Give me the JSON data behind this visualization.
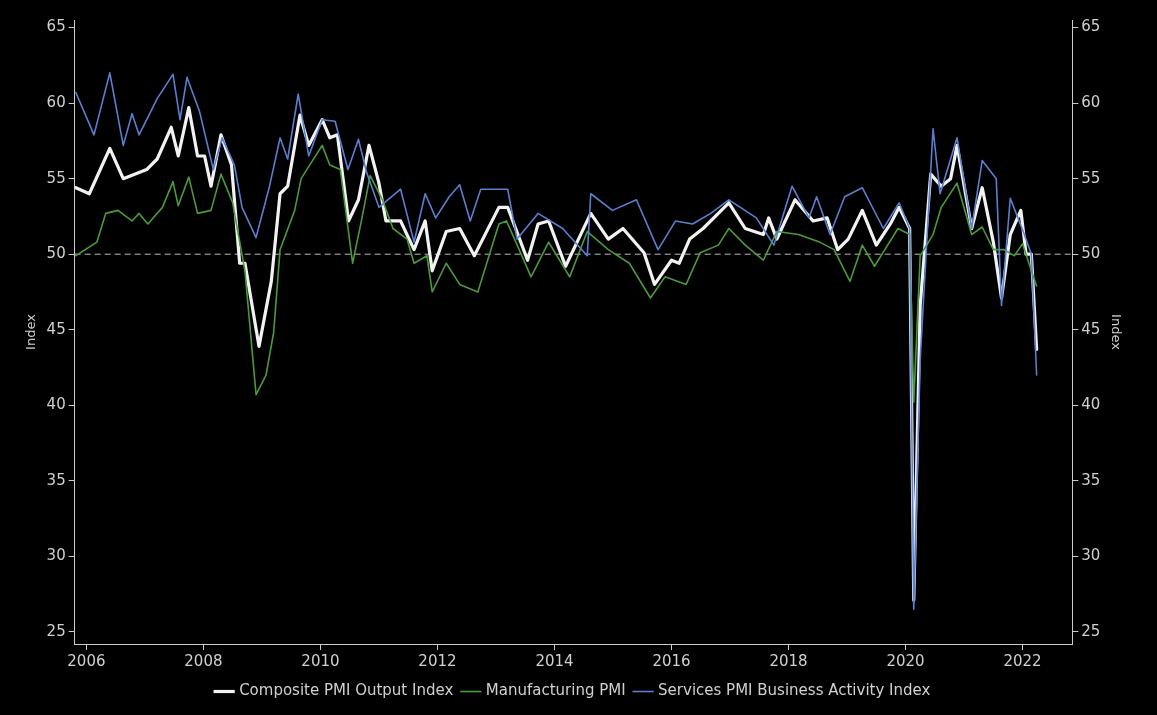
{
  "chart_data": {
    "type": "line",
    "xlabel": null,
    "ylabel": "Index",
    "y2label": "Index",
    "xlim": [
      2005.8,
      2022.85
    ],
    "xticks": [
      2006,
      2008,
      2010,
      2012,
      2014,
      2016,
      2018,
      2020,
      2022
    ],
    "ylim": [
      24.2,
      65.5
    ],
    "yticks": [
      25,
      30,
      35,
      40,
      45,
      50,
      55,
      60,
      65
    ],
    "y2lim": [
      24.2,
      65.5
    ],
    "y2ticks": [
      25,
      30,
      35,
      40,
      45,
      50,
      55,
      60,
      65
    ],
    "grid": false,
    "legend": "bottom",
    "marker": "none",
    "line_style": "solid",
    "ref_lines": [
      {
        "axis": "y",
        "value": 50,
        "label": null,
        "color": "#bbbbbb",
        "line_style": "dashed"
      }
    ],
    "series": [
      {
        "name": "Composite PMI Output Index",
        "color": "#f2f2f2",
        "x": [
          2005.82,
          2006.05,
          2006.4,
          2006.63,
          2007.03,
          2007.21,
          2007.45,
          2007.57,
          2007.75,
          2007.9,
          2008.02,
          2008.13,
          2008.3,
          2008.48,
          2008.62,
          2008.71,
          2008.95,
          2009.16,
          2009.31,
          2009.44,
          2009.65,
          2009.8,
          2010.03,
          2010.16,
          2010.29,
          2010.48,
          2010.65,
          2010.83,
          2011.0,
          2011.12,
          2011.37,
          2011.6,
          2011.79,
          2011.91,
          2012.15,
          2012.38,
          2012.63,
          2013.05,
          2013.2,
          2013.54,
          2013.72,
          2013.9,
          2014.19,
          2014.62,
          2014.92,
          2015.17,
          2015.53,
          2015.71,
          2016.0,
          2016.13,
          2016.31,
          2016.54,
          2016.8,
          2016.98,
          2017.26,
          2017.57,
          2017.66,
          2017.8,
          2018.11,
          2018.42,
          2018.66,
          2018.84,
          2019.02,
          2019.26,
          2019.5,
          2019.74,
          2019.89,
          2020.07,
          2020.14,
          2020.25,
          2020.43,
          2020.61,
          2020.77,
          2020.88,
          2021.13,
          2021.31,
          2021.5,
          2021.64,
          2021.79,
          2021.97,
          2022.06,
          2022.15,
          2022.24
        ],
        "values": [
          54.4,
          54.0,
          57.0,
          55.0,
          55.6,
          56.3,
          58.4,
          56.5,
          59.7,
          56.5,
          56.5,
          54.5,
          57.9,
          55.9,
          49.4,
          49.4,
          43.9,
          48.2,
          54.0,
          54.5,
          59.2,
          57.2,
          58.9,
          57.7,
          57.9,
          52.2,
          53.6,
          57.2,
          54.7,
          52.2,
          52.2,
          50.3,
          52.2,
          48.9,
          51.5,
          51.7,
          49.9,
          53.1,
          53.1,
          49.6,
          52.0,
          52.2,
          49.2,
          52.7,
          51.0,
          51.7,
          50.1,
          48.0,
          49.6,
          49.4,
          51.0,
          51.7,
          52.7,
          53.4,
          51.7,
          51.3,
          52.4,
          51.0,
          53.6,
          52.2,
          52.4,
          50.3,
          51.0,
          52.9,
          50.6,
          52.0,
          53.1,
          51.7,
          27.1,
          46.6,
          55.3,
          54.5,
          55.0,
          57.2,
          51.7,
          54.4,
          50.8,
          47.1,
          51.3,
          52.9,
          50.0,
          50.0,
          43.7
        ]
      },
      {
        "name": "Manufacturing PMI",
        "color": "#4a9a3c",
        "x": [
          2005.82,
          2006.18,
          2006.33,
          2006.54,
          2006.78,
          2006.9,
          2007.05,
          2007.3,
          2007.48,
          2007.57,
          2007.75,
          2007.9,
          2008.13,
          2008.3,
          2008.5,
          2008.71,
          2008.9,
          2009.07,
          2009.2,
          2009.31,
          2009.56,
          2009.67,
          2010.03,
          2010.16,
          2010.34,
          2010.55,
          2010.7,
          2010.85,
          2011.06,
          2011.24,
          2011.48,
          2011.6,
          2011.82,
          2011.91,
          2012.15,
          2012.38,
          2012.69,
          2013.05,
          2013.18,
          2013.6,
          2013.9,
          2014.26,
          2014.56,
          2014.92,
          2015.28,
          2015.64,
          2015.89,
          2016.25,
          2016.49,
          2016.8,
          2016.98,
          2017.26,
          2017.57,
          2017.8,
          2018.17,
          2018.53,
          2018.78,
          2019.05,
          2019.26,
          2019.47,
          2019.87,
          2020.07,
          2020.14,
          2020.25,
          2020.47,
          2020.61,
          2020.88,
          2021.13,
          2021.31,
          2021.5,
          2021.68,
          2021.86,
          2022.0,
          2022.15,
          2022.24
        ],
        "values": [
          49.9,
          50.8,
          52.7,
          52.9,
          52.2,
          52.7,
          52.0,
          53.1,
          54.8,
          53.2,
          55.1,
          52.7,
          52.9,
          55.3,
          53.4,
          48.9,
          40.7,
          42.0,
          44.8,
          50.3,
          52.9,
          55.0,
          57.2,
          55.9,
          55.6,
          49.4,
          52.2,
          55.2,
          53.6,
          51.7,
          51.0,
          49.4,
          49.9,
          47.5,
          49.4,
          48.0,
          47.5,
          52.0,
          52.2,
          48.5,
          50.8,
          48.5,
          51.5,
          50.3,
          49.4,
          47.1,
          48.5,
          48.0,
          50.1,
          50.6,
          51.7,
          50.6,
          49.6,
          51.5,
          51.3,
          50.8,
          50.3,
          48.2,
          50.6,
          49.2,
          51.7,
          51.3,
          40.2,
          49.9,
          51.3,
          53.1,
          54.7,
          51.3,
          51.8,
          50.3,
          50.3,
          49.9,
          50.7,
          48.9,
          47.9
        ]
      },
      {
        "name": "Services PMI Business Activity Index",
        "color": "#5b7fd0",
        "x": [
          2005.82,
          2006.13,
          2006.4,
          2006.63,
          2006.78,
          2006.9,
          2007.21,
          2007.48,
          2007.6,
          2007.72,
          2007.93,
          2008.17,
          2008.32,
          2008.53,
          2008.66,
          2008.9,
          2009.13,
          2009.31,
          2009.44,
          2009.62,
          2009.8,
          2010.03,
          2010.25,
          2010.47,
          2010.65,
          2010.79,
          2011.0,
          2011.37,
          2011.6,
          2011.79,
          2011.97,
          2012.2,
          2012.38,
          2012.56,
          2012.74,
          2013.2,
          2013.36,
          2013.72,
          2014.14,
          2014.56,
          2014.62,
          2014.99,
          2015.4,
          2015.77,
          2016.07,
          2016.36,
          2016.67,
          2016.98,
          2017.45,
          2017.75,
          2018.06,
          2018.35,
          2018.48,
          2018.71,
          2018.96,
          2019.26,
          2019.62,
          2019.89,
          2020.07,
          2020.14,
          2020.25,
          2020.47,
          2020.59,
          2020.88,
          2021.13,
          2021.31,
          2021.55,
          2021.64,
          2021.79,
          2022.03,
          2022.15,
          2022.24
        ],
        "values": [
          60.7,
          57.9,
          62.0,
          57.2,
          59.3,
          57.9,
          60.3,
          61.9,
          58.9,
          61.7,
          59.5,
          55.6,
          57.7,
          55.9,
          53.1,
          51.1,
          54.5,
          57.7,
          56.3,
          60.6,
          56.5,
          58.9,
          58.8,
          55.6,
          57.6,
          55.4,
          53.1,
          54.3,
          50.8,
          54.0,
          52.4,
          53.8,
          54.6,
          52.2,
          54.3,
          54.3,
          51.0,
          52.7,
          51.7,
          49.9,
          54.0,
          52.9,
          53.6,
          50.3,
          52.2,
          52.0,
          52.7,
          53.6,
          52.4,
          50.6,
          54.5,
          52.4,
          53.8,
          51.3,
          53.8,
          54.4,
          51.7,
          53.4,
          51.7,
          26.5,
          43.0,
          58.3,
          54.0,
          57.7,
          51.7,
          56.2,
          55.0,
          46.6,
          53.7,
          51.3,
          50.0,
          42.0
        ]
      }
    ]
  }
}
